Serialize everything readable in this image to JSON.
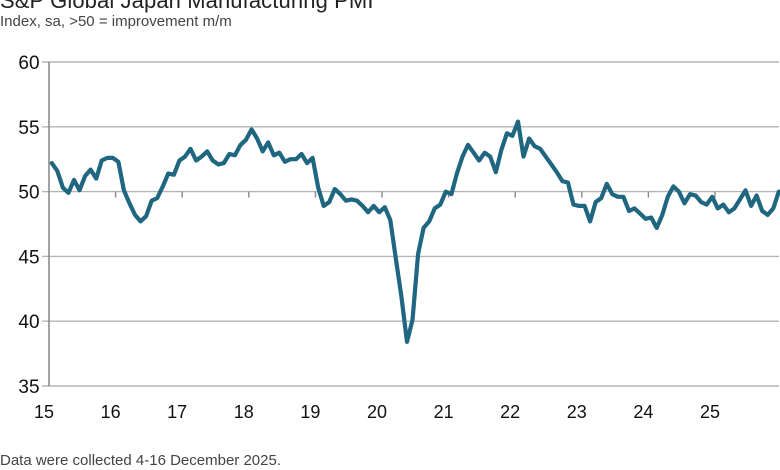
{
  "chart_data": {
    "type": "line",
    "title": "S&P Global Japan Manufacturing PMI",
    "subtitle": "Index, sa, >50 = improvement m/m",
    "footnote": "Data were collected 4-16 December 2025.",
    "xlabel": "",
    "ylabel": "",
    "ylim": [
      35,
      60
    ],
    "yticks": [
      "60",
      "55",
      "50",
      "45",
      "40",
      "35"
    ],
    "ytick_values": [
      60,
      55,
      50,
      45,
      40,
      35
    ],
    "xticks": [
      "15",
      "16",
      "17",
      "18",
      "19",
      "20",
      "21",
      "22",
      "23",
      "24",
      "25"
    ],
    "xlim": [
      "2015-01",
      "2025-12"
    ],
    "grid": "horizontal",
    "reference_line": 50,
    "line_color": "#1f6680",
    "series": [
      {
        "name": "S&P Global Japan Manufacturing PMI",
        "start": "2015-01",
        "frequency": "monthly",
        "values": [
          52.2,
          51.6,
          50.3,
          49.9,
          50.9,
          50.1,
          51.2,
          51.7,
          51.0,
          52.4,
          52.6,
          52.6,
          52.3,
          50.1,
          49.1,
          48.2,
          47.7,
          48.1,
          49.3,
          49.5,
          50.4,
          51.4,
          51.3,
          52.4,
          52.7,
          53.3,
          52.4,
          52.7,
          53.1,
          52.4,
          52.1,
          52.2,
          52.9,
          52.8,
          53.6,
          54.0,
          54.8,
          54.1,
          53.1,
          53.8,
          52.8,
          53.0,
          52.3,
          52.5,
          52.5,
          52.9,
          52.2,
          52.6,
          50.3,
          48.9,
          49.2,
          50.2,
          49.8,
          49.3,
          49.4,
          49.3,
          48.9,
          48.4,
          48.9,
          48.4,
          48.8,
          47.8,
          44.8,
          41.9,
          38.4,
          40.1,
          45.2,
          47.2,
          47.7,
          48.7,
          49.0,
          50.0,
          49.8,
          51.4,
          52.7,
          53.6,
          53.0,
          52.4,
          53.0,
          52.7,
          51.5,
          53.2,
          54.5,
          54.3,
          55.4,
          52.7,
          54.1,
          53.5,
          53.3,
          52.7,
          52.1,
          51.5,
          50.8,
          50.7,
          49.0,
          48.9,
          48.9,
          47.7,
          49.2,
          49.5,
          50.6,
          49.8,
          49.6,
          49.6,
          48.5,
          48.7,
          48.3,
          47.9,
          48.0,
          47.2,
          48.2,
          49.6,
          50.4,
          50.0,
          49.1,
          49.8,
          49.7,
          49.2,
          49.0,
          49.6,
          48.7,
          49.0,
          48.4,
          48.7,
          49.4,
          50.1,
          48.9,
          49.7,
          48.5,
          48.2,
          48.7,
          50.0
        ]
      }
    ]
  }
}
